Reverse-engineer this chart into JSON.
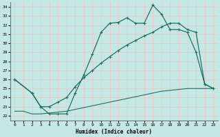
{
  "xlabel": "Humidex (Indice chaleur)",
  "xlim": [
    -0.5,
    23.5
  ],
  "ylim": [
    21.5,
    34.5
  ],
  "xticks": [
    0,
    1,
    2,
    3,
    4,
    5,
    6,
    7,
    8,
    9,
    10,
    11,
    12,
    13,
    14,
    15,
    16,
    17,
    18,
    19,
    20,
    21,
    22,
    23
  ],
  "yticks": [
    22,
    23,
    24,
    25,
    26,
    27,
    28,
    29,
    30,
    31,
    32,
    33,
    34
  ],
  "bg_color": "#c6e8e4",
  "grid_color": "#e8cccc",
  "line_color": "#1a7060",
  "line1_x": [
    0,
    2,
    3,
    4,
    5,
    6,
    7,
    8,
    9,
    10,
    11,
    12,
    13,
    14,
    15,
    16,
    17,
    18,
    19,
    20,
    21,
    22,
    23
  ],
  "line1_y": [
    26.0,
    24.5,
    23.0,
    22.2,
    22.2,
    22.2,
    24.5,
    26.5,
    28.8,
    31.2,
    32.2,
    32.3,
    32.8,
    32.2,
    32.2,
    34.2,
    33.2,
    31.5,
    31.5,
    31.2,
    29.0,
    25.5,
    25.0
  ],
  "line2_x": [
    0,
    2,
    3,
    4,
    5,
    6,
    7,
    8,
    9,
    10,
    11,
    12,
    13,
    14,
    15,
    16,
    17,
    18,
    19,
    20,
    21,
    22,
    23
  ],
  "line2_y": [
    26.0,
    24.5,
    23.0,
    23.0,
    23.5,
    24.0,
    25.2,
    26.2,
    27.0,
    27.8,
    28.5,
    29.2,
    29.8,
    30.3,
    30.8,
    31.2,
    31.8,
    32.2,
    32.2,
    31.5,
    31.2,
    25.5,
    25.0
  ],
  "line3_x": [
    0,
    1,
    2,
    3,
    4,
    5,
    6,
    7,
    8,
    9,
    10,
    11,
    12,
    13,
    14,
    15,
    16,
    17,
    18,
    19,
    20,
    21,
    22,
    23
  ],
  "line3_y": [
    22.5,
    22.5,
    22.2,
    22.2,
    22.3,
    22.4,
    22.5,
    22.7,
    22.9,
    23.1,
    23.3,
    23.5,
    23.7,
    23.9,
    24.1,
    24.3,
    24.5,
    24.7,
    24.8,
    24.9,
    25.0,
    25.0,
    25.0,
    25.0
  ]
}
